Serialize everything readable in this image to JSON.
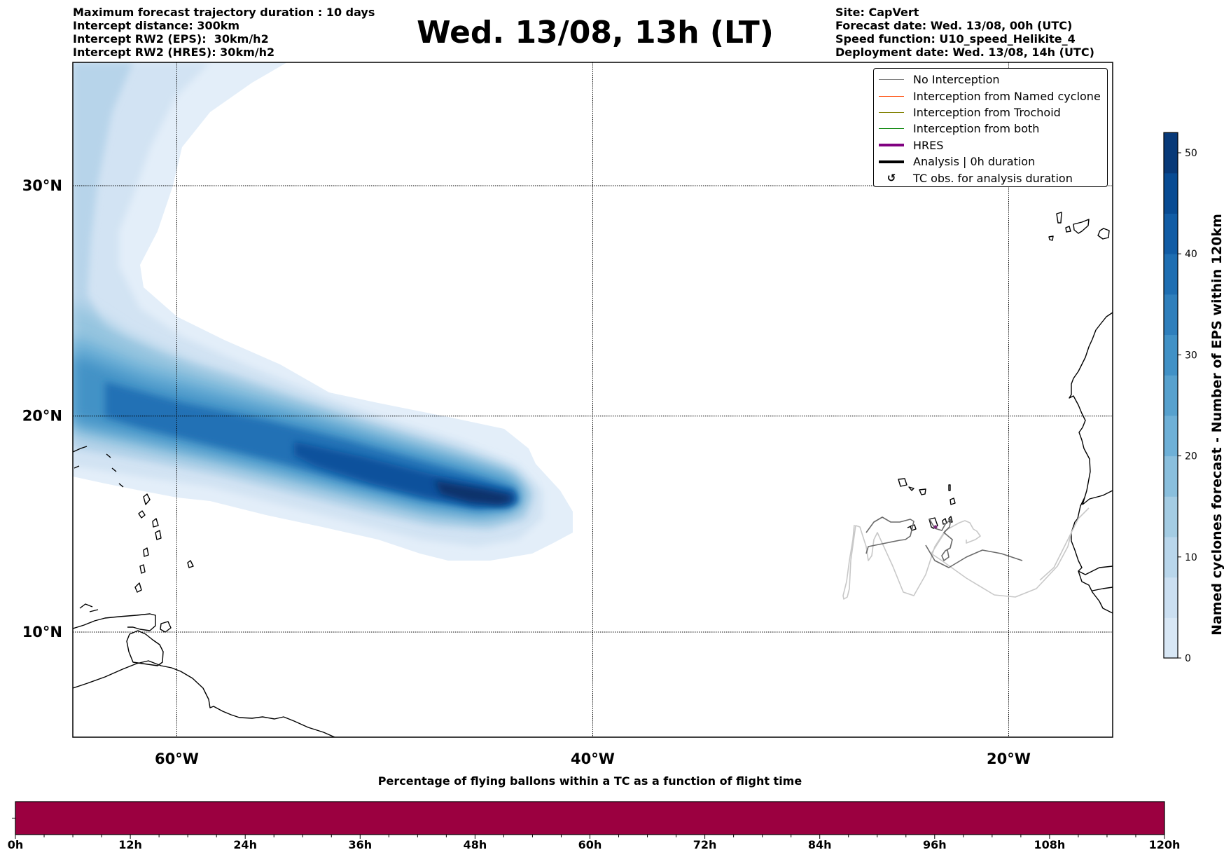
{
  "header": {
    "title": "Wed. 13/08, 13h (LT)",
    "left_info": [
      "Maximum forecast trajectory duration : 10 days",
      "Intercept distance: 300km",
      "Intercept RW2 (EPS):  30km/h2",
      "Intercept RW2 (HRES): 30km/h2"
    ],
    "right_info": [
      "Site: CapVert",
      "Forecast date: Wed. 13/08, 00h (UTC)",
      "Speed function: U10_speed_Helikite_4",
      "Deployment date: Wed. 13/08, 14h (UTC)"
    ]
  },
  "map": {
    "lon_range": [
      -65,
      -15
    ],
    "lat_range": [
      5,
      35
    ],
    "lat_ticks": [
      {
        "value": 30,
        "label": "30°N"
      },
      {
        "value": 20,
        "label": "20°N"
      },
      {
        "value": 10,
        "label": "10°N"
      }
    ],
    "lon_ticks": [
      {
        "value": -60,
        "label": "60°W"
      },
      {
        "value": -40,
        "label": "40°W"
      },
      {
        "value": -20,
        "label": "20°W"
      }
    ],
    "gridlines": true,
    "colors": {
      "no_interception": "#808080",
      "named_cyclone": "#ff4500",
      "trochoid": "#808000",
      "both": "#008000",
      "hres": "#800080",
      "analysis": "#000000",
      "trajectory_light": "#c8c8c8",
      "trajectory_dark": "#6a6a6a"
    }
  },
  "legend": {
    "placement": "top-right",
    "items": [
      {
        "label": "No Interception",
        "type": "line",
        "color": "#808080",
        "weight": "thin"
      },
      {
        "label": "Interception from Named cyclone",
        "type": "line",
        "color": "#ff4500",
        "weight": "thin"
      },
      {
        "label": "Interception from Trochoid",
        "type": "line",
        "color": "#808000",
        "weight": "thin"
      },
      {
        "label": "Interception from both",
        "type": "line",
        "color": "#008000",
        "weight": "thin"
      },
      {
        "label": "HRES",
        "type": "line",
        "color": "#800080",
        "weight": "thick"
      },
      {
        "label": "Analysis | 0h duration",
        "type": "line",
        "color": "#000000",
        "weight": "thick"
      },
      {
        "label": "TC obs. for analysis duration",
        "type": "marker",
        "glyph": "↺",
        "icon": "tc-symbol-icon"
      }
    ]
  },
  "colorbar": {
    "label": "Named cyclones forecast - Number of EPS within 120km",
    "range": [
      0,
      52
    ],
    "ticks": [
      0,
      10,
      20,
      30,
      40,
      50
    ],
    "cmap": "Blues",
    "levels": 13
  },
  "chart_data": {
    "type": "heatmap",
    "title": "Wed. 13/08, 13h (LT)",
    "description": "Density of named-cyclone EPS forecast tracks (number of EPS members within 120km)",
    "plume_core_track": [
      {
        "lon": -65,
        "lat": 21.0,
        "value": 38
      },
      {
        "lon": -60,
        "lat": 20.0,
        "value": 40
      },
      {
        "lon": -55,
        "lat": 19.3,
        "value": 42
      },
      {
        "lon": -50,
        "lat": 18.4,
        "value": 46
      },
      {
        "lon": -46,
        "lat": 17.4,
        "value": 49
      },
      {
        "lon": -43,
        "lat": 16.3,
        "value": 52
      }
    ],
    "clim": [
      0,
      52
    ],
    "xlabel": "",
    "ylabel": ""
  },
  "bottom_bar": {
    "title": "Percentage of flying ballons within a TC as a function of flight time",
    "x_range_hours": [
      0,
      120
    ],
    "fill_color": "#9b0040",
    "tick_labels": [
      "0h",
      "12h",
      "24h",
      "36h",
      "48h",
      "60h",
      "72h",
      "84h",
      "96h",
      "108h",
      "120h"
    ],
    "major_tick_step_hours": 12,
    "minor_tick_step_hours": 3
  }
}
